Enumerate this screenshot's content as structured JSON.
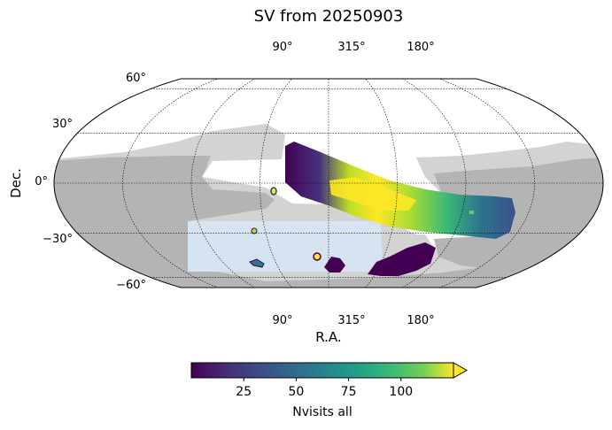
{
  "chart_data": {
    "type": "heatmap",
    "projection": "mollweide",
    "title": "SV from 20250903",
    "xlabel": "R.A.",
    "ylabel": "Dec.",
    "ra_tick_labels": [
      "90°",
      "315°",
      "180°"
    ],
    "dec_tick_labels": [
      "60°",
      "30°",
      "0°",
      "−30°",
      "−60°"
    ],
    "dec_tick_values": [
      60,
      30,
      0,
      -30,
      -60
    ],
    "grid": true,
    "colorbar": {
      "label": "Nvisits all",
      "colormap": "viridis",
      "range": [
        0,
        125
      ],
      "ticks": [
        25,
        50,
        75,
        100
      ],
      "tick_labels": [
        "25",
        "50",
        "75",
        "100"
      ],
      "extend": "max"
    },
    "regions": [
      {
        "kind": "main-survey-strip",
        "color": "#440154",
        "max_nvisits": 125,
        "core_color": "#fde725"
      },
      {
        "kind": "footprint-light",
        "color": "#d3d3d3"
      },
      {
        "kind": "footprint-medium",
        "color": "#b4b4b4"
      },
      {
        "kind": "footprint-blue",
        "color": "#d6e4f2"
      }
    ]
  }
}
